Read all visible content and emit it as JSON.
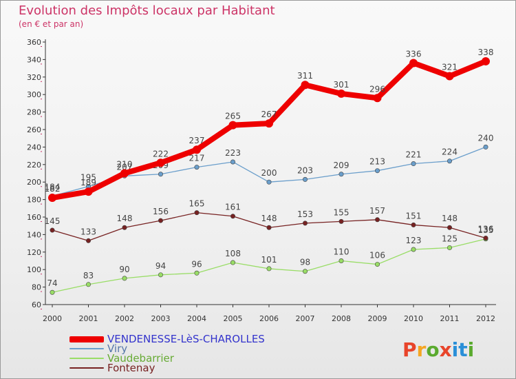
{
  "header": {
    "title": "Evolution des Impôts locaux par Habitant",
    "subtitle": "(en € et par an)"
  },
  "logo": {
    "letters": [
      "P",
      "r",
      "o",
      "x",
      "i",
      "t",
      "i"
    ],
    "colors": [
      "#e8442a",
      "#f5a623",
      "#5aaa2e",
      "#e8442a",
      "#2a8fd8",
      "#2a8fd8",
      "#5aaa2e"
    ]
  },
  "colors": {
    "title": "#cc3366",
    "axis": "#333333",
    "grid_dot": "#cc3366"
  },
  "chart_data": {
    "type": "line",
    "title": "Evolution des Impôts locaux par Habitant",
    "subtitle": "(en € et par an)",
    "xlabel": "",
    "ylabel": "",
    "ylim": [
      60,
      360
    ],
    "yticks": [
      60,
      80,
      100,
      120,
      140,
      160,
      180,
      200,
      220,
      240,
      260,
      280,
      300,
      320,
      340,
      360
    ],
    "categories": [
      "2000",
      "2001",
      "2002",
      "2003",
      "2004",
      "2005",
      "2006",
      "2007",
      "2008",
      "2009",
      "2010",
      "2011",
      "2012"
    ],
    "legend_position": "bottom-left",
    "series": [
      {
        "name": "VENDENESSE-LèS-CHAROLLES",
        "color": "#ee0000",
        "label_color": "#3333cc",
        "thick": true,
        "values": [
          182,
          189,
          210,
          222,
          237,
          265,
          267,
          311,
          301,
          296,
          336,
          321,
          338
        ]
      },
      {
        "name": "Viry",
        "color": "#6a9ecb",
        "label_color": "#5577aa",
        "thick": false,
        "values": [
          184,
          195,
          207,
          209,
          217,
          223,
          200,
          203,
          209,
          213,
          221,
          224,
          240
        ]
      },
      {
        "name": "Vaudebarrier",
        "color": "#99dd66",
        "label_color": "#66aa33",
        "thick": false,
        "values": [
          74,
          83,
          90,
          94,
          96,
          108,
          101,
          98,
          110,
          106,
          123,
          125,
          135
        ]
      },
      {
        "name": "Fontenay",
        "color": "#772222",
        "label_color": "#772222",
        "thick": false,
        "values": [
          145,
          133,
          148,
          156,
          165,
          161,
          148,
          153,
          155,
          157,
          151,
          148,
          136
        ]
      }
    ]
  }
}
